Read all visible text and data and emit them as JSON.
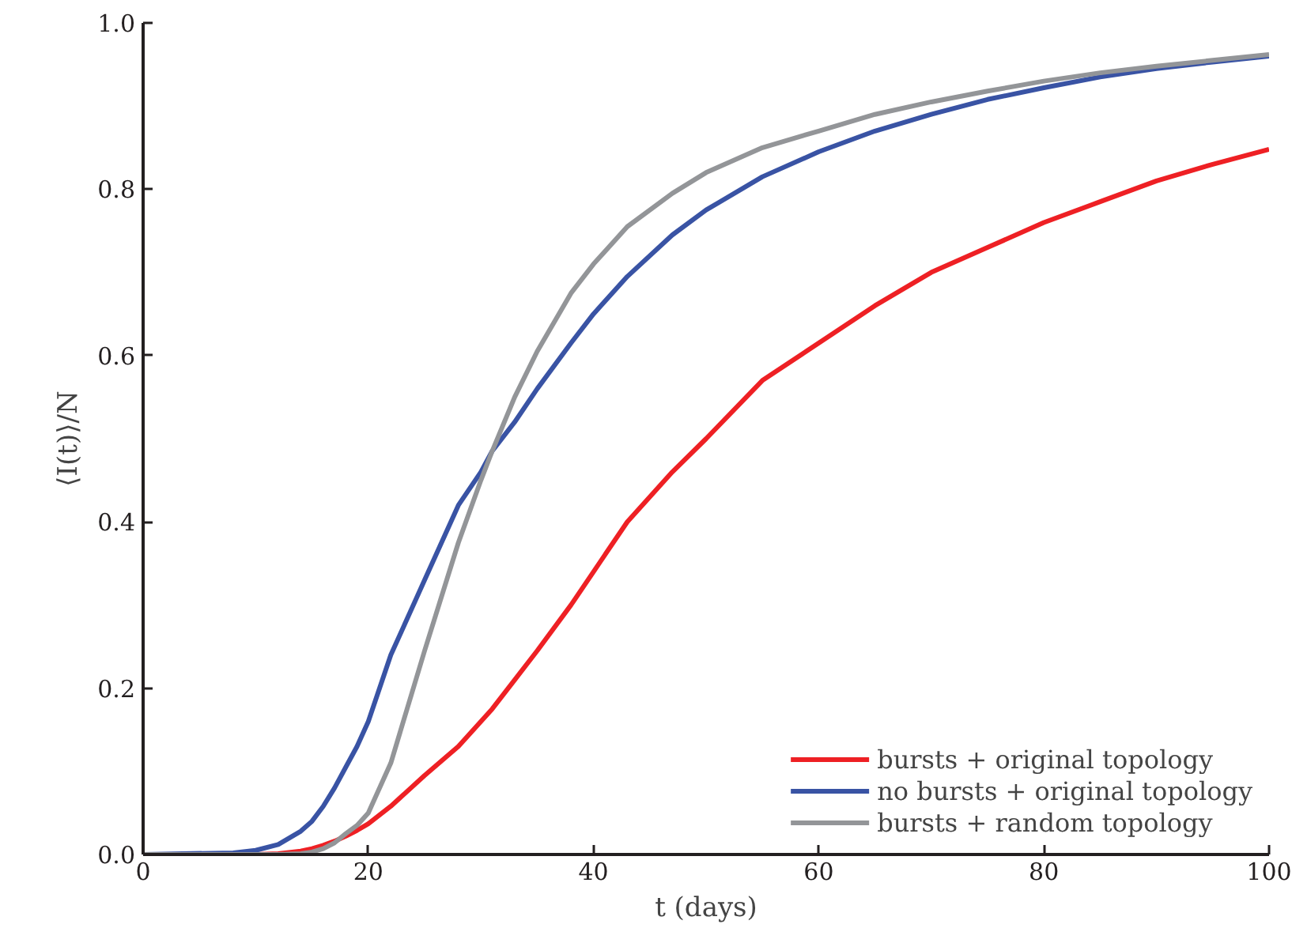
{
  "chart_data": {
    "type": "line",
    "xlabel": "t (days)",
    "ylabel": "⟨I(t)⟩/N",
    "xlim": [
      0,
      100
    ],
    "ylim": [
      0,
      1
    ],
    "xticks": [
      0,
      20,
      40,
      60,
      80,
      100
    ],
    "yticks": [
      {
        "value": 0,
        "label": "0.0"
      },
      {
        "value": 0.2,
        "label": "0.2"
      },
      {
        "value": 0.4,
        "label": "0.4"
      },
      {
        "value": 0.6,
        "label": "0.6"
      },
      {
        "value": 0.8,
        "label": "0.8"
      },
      {
        "value": 1,
        "label": "1.0"
      }
    ],
    "grid": false,
    "legend": "bottom right",
    "marker": "none",
    "line_style": "solid",
    "x": [
      0,
      8,
      10,
      12,
      14,
      15,
      16,
      17,
      18,
      19,
      20,
      22,
      25,
      28,
      30,
      31,
      33,
      35,
      38,
      40,
      43,
      47,
      50,
      55,
      60,
      65,
      70,
      75,
      80,
      85,
      90,
      95,
      100
    ],
    "series": [
      {
        "name": "bursts + original topology",
        "color": "#ee2024",
        "values": [
          0,
          0,
          0,
          0.001,
          0.004,
          0.007,
          0.011,
          0.016,
          0.022,
          0.029,
          0.037,
          0.058,
          0.095,
          0.13,
          0.16,
          0.175,
          0.21,
          0.245,
          0.3,
          0.34,
          0.4,
          0.46,
          0.5,
          0.57,
          0.615,
          0.66,
          0.7,
          0.73,
          0.76,
          0.785,
          0.81,
          0.83,
          0.848
        ]
      },
      {
        "name": "no bursts + original topology",
        "color": "#3953a4",
        "values": [
          0,
          0.002,
          0.005,
          0.012,
          0.028,
          0.04,
          0.058,
          0.08,
          0.105,
          0.13,
          0.16,
          0.24,
          0.33,
          0.42,
          0.46,
          0.485,
          0.52,
          0.56,
          0.615,
          0.65,
          0.695,
          0.745,
          0.775,
          0.815,
          0.845,
          0.87,
          0.89,
          0.908,
          0.922,
          0.935,
          0.945,
          0.953,
          0.96
        ]
      },
      {
        "name": "bursts + random topology",
        "color": "#939598",
        "values": [
          0,
          0,
          0,
          0,
          0.001,
          0.003,
          0.007,
          0.014,
          0.025,
          0.035,
          0.05,
          0.11,
          0.245,
          0.375,
          0.45,
          0.485,
          0.55,
          0.605,
          0.675,
          0.71,
          0.755,
          0.795,
          0.82,
          0.85,
          0.87,
          0.89,
          0.905,
          0.918,
          0.93,
          0.94,
          0.948,
          0.955,
          0.962
        ]
      }
    ]
  }
}
